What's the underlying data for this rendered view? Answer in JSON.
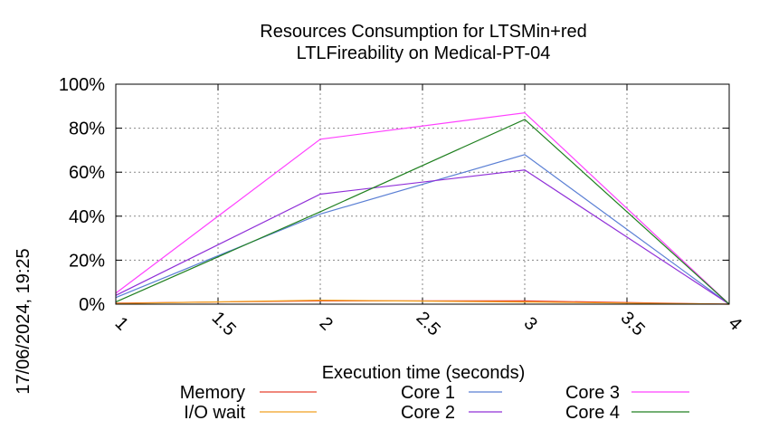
{
  "chart_data": {
    "type": "line",
    "title": "Resources Consumption for LTSMin+red",
    "subtitle": "LTLFireability on Medical-PT-04",
    "xlabel": "Execution time (seconds)",
    "ylabel": "",
    "timestamp": "17/06/2024, 19:25",
    "xlim": [
      1,
      4
    ],
    "ylim": [
      0,
      100
    ],
    "x_ticks": [
      1,
      1.5,
      2,
      2.5,
      3,
      3.5,
      4
    ],
    "x_tick_labels": [
      "1",
      "1.5",
      "2",
      "2.5",
      "3",
      "3.5",
      "4"
    ],
    "y_ticks": [
      0,
      20,
      40,
      60,
      80,
      100
    ],
    "y_tick_labels": [
      "0%",
      "20%",
      "40%",
      "60%",
      "80%",
      "100%"
    ],
    "grid": true,
    "legend_position": "bottom",
    "x": [
      1,
      2,
      3,
      4
    ],
    "series": [
      {
        "name": "Memory",
        "color": "#e8422e",
        "values": [
          0.5,
          1.5,
          1.5,
          0
        ]
      },
      {
        "name": "I/O wait",
        "color": "#f0a020",
        "values": [
          0.3,
          1.8,
          1.0,
          0
        ]
      },
      {
        "name": "Core 1",
        "color": "#5a7fd4",
        "values": [
          3,
          41,
          68,
          0
        ]
      },
      {
        "name": "Core 2",
        "color": "#9030d8",
        "values": [
          4,
          50,
          61,
          0
        ]
      },
      {
        "name": "Core 3",
        "color": "#ff40ff",
        "values": [
          5,
          75,
          87,
          0
        ]
      },
      {
        "name": "Core 4",
        "color": "#208020",
        "values": [
          1,
          42,
          84,
          0
        ]
      }
    ]
  }
}
